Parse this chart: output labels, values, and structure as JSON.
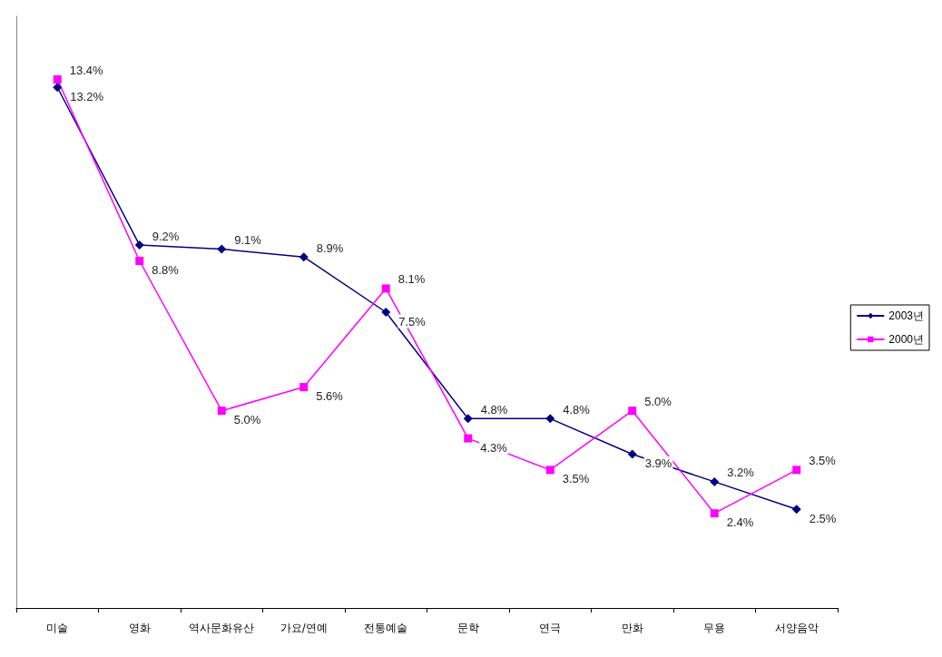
{
  "chart_data": {
    "type": "line",
    "categories": [
      "미술",
      "영화",
      "역사문화유산",
      "가요/연예",
      "전통예술",
      "문학",
      "연극",
      "만화",
      "무용",
      "서양음악"
    ],
    "series": [
      {
        "name": "2003년",
        "color": "#000080",
        "marker": "diamond",
        "values": [
          13.2,
          9.2,
          9.1,
          8.9,
          7.5,
          4.8,
          4.8,
          3.9,
          3.2,
          2.5
        ],
        "value_labels": [
          "13.2%",
          "9.2%",
          "9.1%",
          "8.9%",
          "7.5%",
          "4.8%",
          "4.8%",
          "3.9%",
          "3.2%",
          "2.5%"
        ]
      },
      {
        "name": "2000년",
        "color": "#ff00ff",
        "marker": "square",
        "values": [
          13.4,
          8.8,
          5.0,
          5.6,
          8.1,
          4.3,
          3.5,
          5.0,
          2.4,
          3.5
        ],
        "value_labels": [
          "13.4%",
          "8.8%",
          "5.0%",
          "5.6%",
          "8.1%",
          "4.3%",
          "3.5%",
          "5.0%",
          "2.4%",
          "3.5%"
        ]
      }
    ],
    "legend": "right",
    "grid": false
  }
}
